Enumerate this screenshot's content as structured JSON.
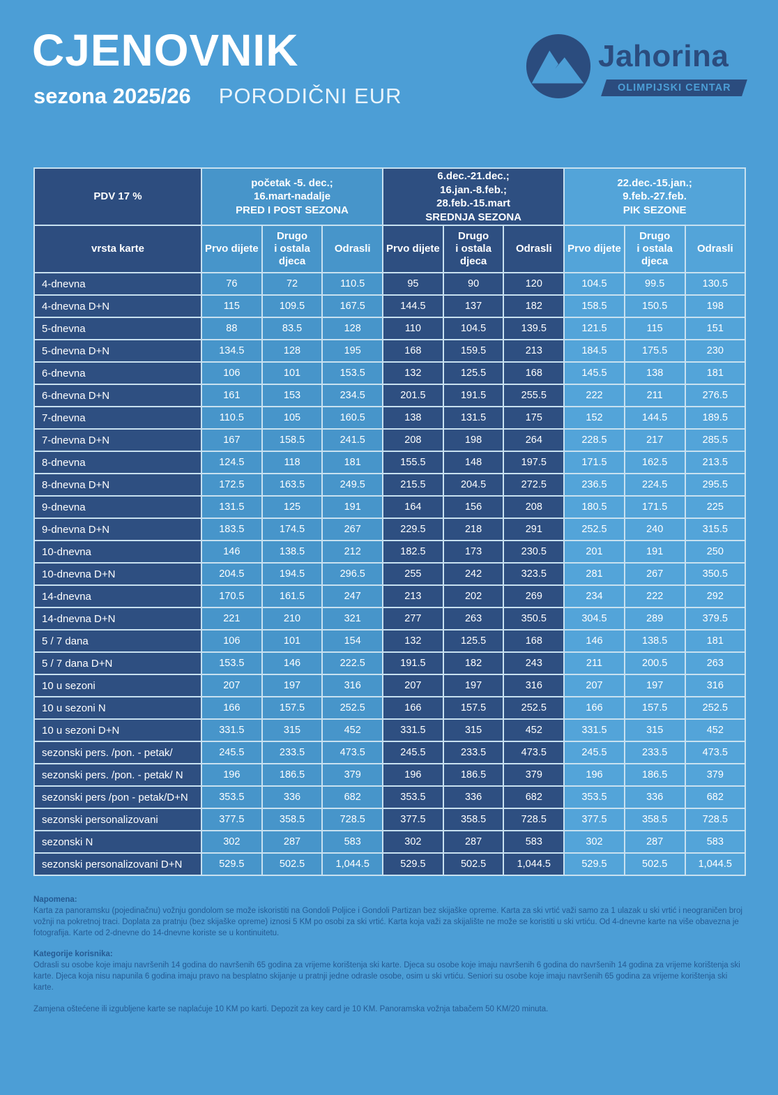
{
  "header": {
    "title": "CJENOVNIK",
    "season": "sezona 2025/26",
    "subtitle": "PORODIČNI EUR"
  },
  "logo": {
    "brand": "Jahorina",
    "tagline": "OLIMPIJSKI CENTAR",
    "icon": "mountain-in-circle"
  },
  "colors": {
    "background": "#4C9ED6",
    "navy": "#2D4D7F",
    "season_pred_post": "#4795CA",
    "season_srednja": "#2E4F81",
    "season_pik": "#53A4D9",
    "table_border": "#C8E1F0",
    "note_text": "#265B93"
  },
  "table": {
    "vat_label": "PDV 17 %",
    "row_header_label": "vrsta karte",
    "season_groups": [
      {
        "label": "početak -5. dec.;\n16.mart-nadalje\nPRED I POST SEZONA"
      },
      {
        "label": "6.dec.-21.dec.;\n16.jan.-8.feb.;\n28.feb.-15.mart\nSREDNJA SEZONA"
      },
      {
        "label": "22.dec.-15.jan.;\n9.feb.-27.feb.\nPIK SEZONE"
      }
    ],
    "sub_columns": [
      "Prvo dijete",
      "Drugo\ni ostala\ndjeca",
      "Odrasli"
    ],
    "rows": [
      {
        "label": "4-dnevna",
        "values": [
          "76",
          "72",
          "110.5",
          "95",
          "90",
          "120",
          "104.5",
          "99.5",
          "130.5"
        ]
      },
      {
        "label": "4-dnevna D+N",
        "values": [
          "115",
          "109.5",
          "167.5",
          "144.5",
          "137",
          "182",
          "158.5",
          "150.5",
          "198"
        ]
      },
      {
        "label": "5-dnevna",
        "values": [
          "88",
          "83.5",
          "128",
          "110",
          "104.5",
          "139.5",
          "121.5",
          "115",
          "151"
        ]
      },
      {
        "label": "5-dnevna D+N",
        "values": [
          "134.5",
          "128",
          "195",
          "168",
          "159.5",
          "213",
          "184.5",
          "175.5",
          "230"
        ]
      },
      {
        "label": "6-dnevna",
        "values": [
          "106",
          "101",
          "153.5",
          "132",
          "125.5",
          "168",
          "145.5",
          "138",
          "181"
        ]
      },
      {
        "label": "6-dnevna D+N",
        "values": [
          "161",
          "153",
          "234.5",
          "201.5",
          "191.5",
          "255.5",
          "222",
          "211",
          "276.5"
        ]
      },
      {
        "label": "7-dnevna",
        "values": [
          "110.5",
          "105",
          "160.5",
          "138",
          "131.5",
          "175",
          "152",
          "144.5",
          "189.5"
        ]
      },
      {
        "label": "7-dnevna D+N",
        "values": [
          "167",
          "158.5",
          "241.5",
          "208",
          "198",
          "264",
          "228.5",
          "217",
          "285.5"
        ]
      },
      {
        "label": "8-dnevna",
        "values": [
          "124.5",
          "118",
          "181",
          "155.5",
          "148",
          "197.5",
          "171.5",
          "162.5",
          "213.5"
        ]
      },
      {
        "label": "8-dnevna D+N",
        "values": [
          "172.5",
          "163.5",
          "249.5",
          "215.5",
          "204.5",
          "272.5",
          "236.5",
          "224.5",
          "295.5"
        ]
      },
      {
        "label": "9-dnevna",
        "values": [
          "131.5",
          "125",
          "191",
          "164",
          "156",
          "208",
          "180.5",
          "171.5",
          "225"
        ]
      },
      {
        "label": "9-dnevna D+N",
        "values": [
          "183.5",
          "174.5",
          "267",
          "229.5",
          "218",
          "291",
          "252.5",
          "240",
          "315.5"
        ]
      },
      {
        "label": "10-dnevna",
        "values": [
          "146",
          "138.5",
          "212",
          "182.5",
          "173",
          "230.5",
          "201",
          "191",
          "250"
        ]
      },
      {
        "label": "10-dnevna D+N",
        "values": [
          "204.5",
          "194.5",
          "296.5",
          "255",
          "242",
          "323.5",
          "281",
          "267",
          "350.5"
        ]
      },
      {
        "label": "14-dnevna",
        "values": [
          "170.5",
          "161.5",
          "247",
          "213",
          "202",
          "269",
          "234",
          "222",
          "292"
        ]
      },
      {
        "label": "14-dnevna D+N",
        "values": [
          "221",
          "210",
          "321",
          "277",
          "263",
          "350.5",
          "304.5",
          "289",
          "379.5"
        ]
      },
      {
        "label": "5 / 7 dana",
        "values": [
          "106",
          "101",
          "154",
          "132",
          "125.5",
          "168",
          "146",
          "138.5",
          "181"
        ]
      },
      {
        "label": "5 / 7 dana D+N",
        "values": [
          "153.5",
          "146",
          "222.5",
          "191.5",
          "182",
          "243",
          "211",
          "200.5",
          "263"
        ]
      },
      {
        "label": "10 u sezoni",
        "values": [
          "207",
          "197",
          "316",
          "207",
          "197",
          "316",
          "207",
          "197",
          "316"
        ]
      },
      {
        "label": "10 u sezoni N",
        "values": [
          "166",
          "157.5",
          "252.5",
          "166",
          "157.5",
          "252.5",
          "166",
          "157.5",
          "252.5"
        ]
      },
      {
        "label": "10 u sezoni D+N",
        "values": [
          "331.5",
          "315",
          "452",
          "331.5",
          "315",
          "452",
          "331.5",
          "315",
          "452"
        ]
      },
      {
        "label": "sezonski pers. /pon. - petak/",
        "values": [
          "245.5",
          "233.5",
          "473.5",
          "245.5",
          "233.5",
          "473.5",
          "245.5",
          "233.5",
          "473.5"
        ]
      },
      {
        "label": "sezonski pers. /pon. - petak/ N",
        "values": [
          "196",
          "186.5",
          "379",
          "196",
          "186.5",
          "379",
          "196",
          "186.5",
          "379"
        ]
      },
      {
        "label": "sezonski pers /pon - petak/D+N",
        "values": [
          "353.5",
          "336",
          "682",
          "353.5",
          "336",
          "682",
          "353.5",
          "336",
          "682"
        ]
      },
      {
        "label": "sezonski personalizovani",
        "values": [
          "377.5",
          "358.5",
          "728.5",
          "377.5",
          "358.5",
          "728.5",
          "377.5",
          "358.5",
          "728.5"
        ]
      },
      {
        "label": "sezonski N",
        "values": [
          "302",
          "287",
          "583",
          "302",
          "287",
          "583",
          "302",
          "287",
          "583"
        ]
      },
      {
        "label": "sezonski personalizovani D+N",
        "values": [
          "529.5",
          "502.5",
          "1,044.5",
          "529.5",
          "502.5",
          "1,044.5",
          "529.5",
          "502.5",
          "1,044.5"
        ]
      }
    ]
  },
  "notes": {
    "napomena_title": "Napomena:",
    "napomena_text": "Karta za panoramsku (pojedinačnu) vožnju gondolom se može iskoristiti na Gondoli Poljice i Gondoli Partizan bez skijaške opreme. Karta za ski vrtić važi samo za 1 ulazak u ski vrtić i neograničen broj vožnji na pokretnoj traci. Doplata za pratnju (bez skijaške opreme) iznosi 5 KM po osobi za ski vrtić. Karta koja važi za skijalište ne može se koristiti u ski vrtiću. Od 4-dnevne karte na više obavezna je fotografija. Karte od 2-dnevne do 14-dnevne koriste se u kontinuitetu.",
    "kategorije_title": "Kategorije korisnika:",
    "kategorije_text": "Odrasli su osobe koje imaju navršenih 14 godina do navršenih 65 godina za vrijeme korištenja ski karte. Djeca su osobe koje imaju navršenih 6 godina do navršenih 14 godina za vrijeme korištenja ski karte. Djeca koja nisu napunila 6 godina imaju pravo na besplatno skijanje u pratnji jedne odrasle osobe, osim u ski vrtiću. Seniori su osobe koje imaju navršenih 65 godina za vrijeme korištenja ski karte.",
    "zamjena_text": "Zamjena oštećene ili izgubljene karte se naplaćuje 10 KM po karti. Depozit za key card je 10 KM. Panoramska vožnja tabačem 50 KM/20 minuta."
  }
}
